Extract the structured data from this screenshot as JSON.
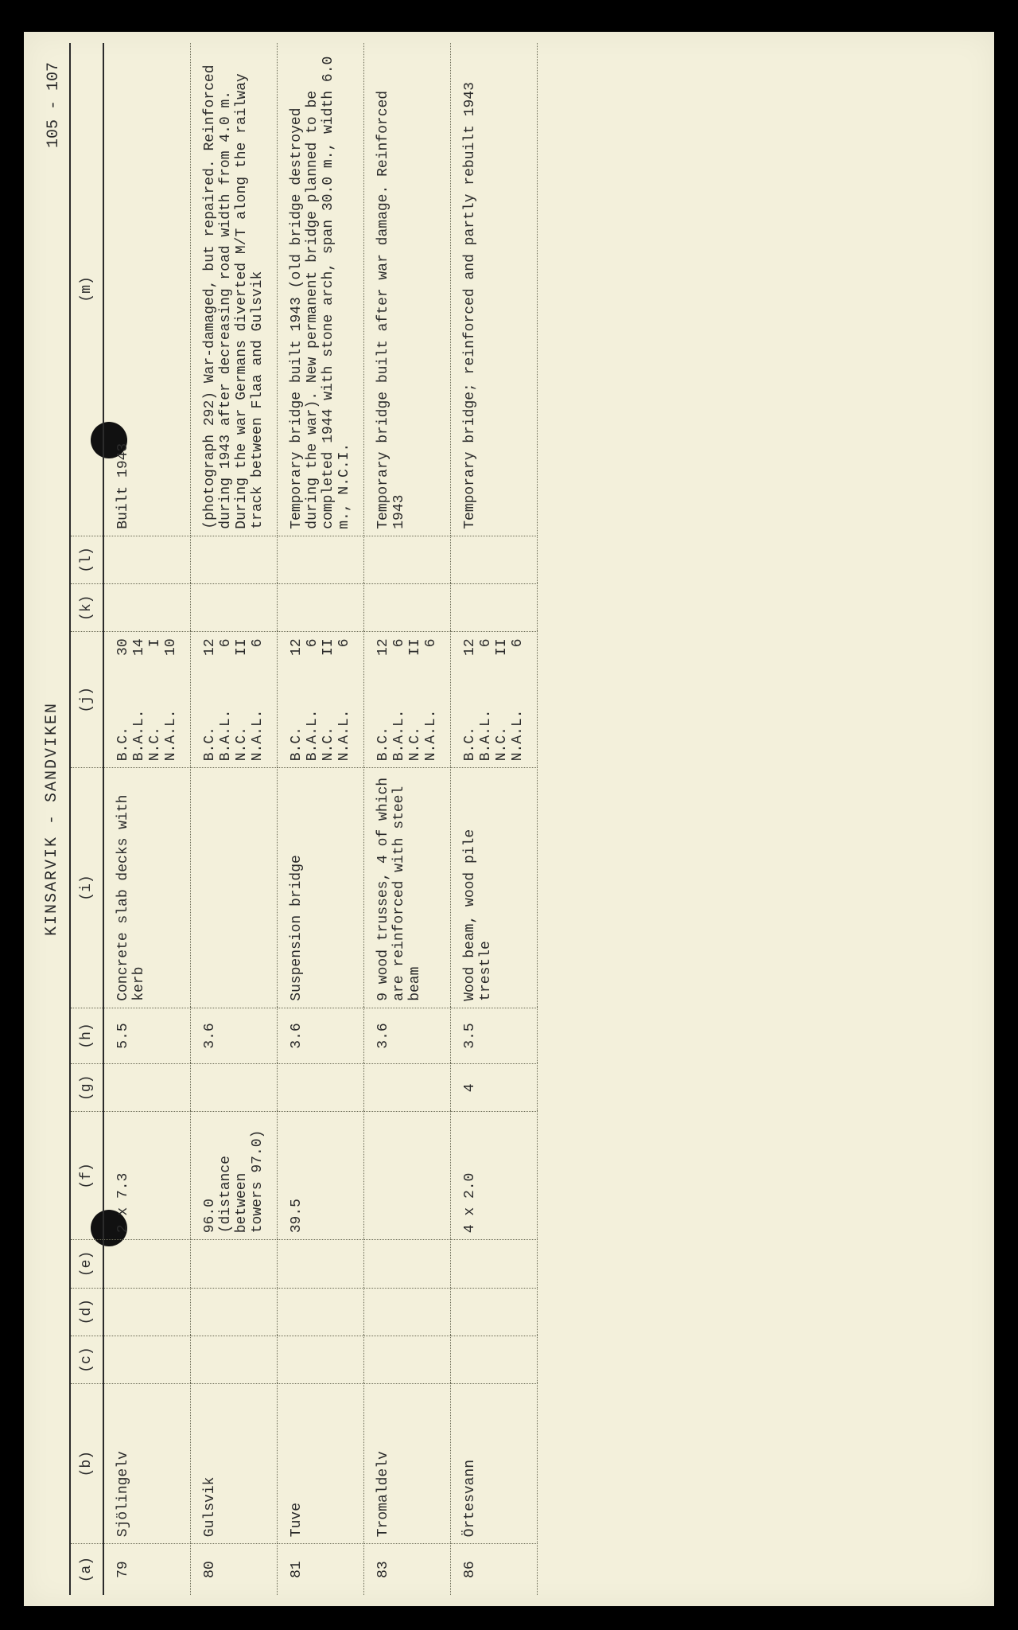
{
  "page": {
    "title": "KINSARVIK - SANDVIKEN",
    "page_number": "105 - 107",
    "background_color": "#f3f0db",
    "frame_color": "#000000",
    "text_color": "#2b2b2b",
    "rule_color": "#6a6a55",
    "font_family": "Courier New",
    "title_fontsize": 20,
    "body_fontsize": 18
  },
  "table": {
    "headers": [
      "(a)",
      "(b)",
      "(c)",
      "(d)",
      "(e)",
      "(f)",
      "(g)",
      "(h)",
      "(i)",
      "(j)",
      "(k)",
      "(l)",
      "(m)"
    ],
    "column_widths_pct": [
      3.2,
      10,
      3,
      3,
      3,
      8,
      3,
      3.5,
      15,
      8.5,
      3,
      3,
      30.8
    ],
    "j_keys": [
      "B.C.",
      "B.A.L.",
      "N.C.",
      "N.A.L."
    ],
    "rows": [
      {
        "a": "79",
        "b": "Sjölingelv",
        "c": "",
        "d": "",
        "e": "",
        "f": "2 x 7.3",
        "g": "",
        "h": "5.5",
        "i": "Concrete slab decks with kerb",
        "j": [
          "30",
          "14",
          "I",
          "10"
        ],
        "k": "",
        "l": "",
        "m": "Built 1943"
      },
      {
        "a": "80",
        "b": "Gulsvik",
        "c": "",
        "d": "",
        "e": "",
        "f": "96.0 (distance between towers 97.0)",
        "g": "",
        "h": "3.6",
        "i": "",
        "j": [
          "12",
          "6",
          "II",
          "6"
        ],
        "k": "",
        "l": "",
        "m": "(photograph 292) War-damaged, but repaired. Reinforced during 1943 after decreasing road width from 4.0 m. During the war Germans diverted M/T along the railway track between Flaa and Gulsvik"
      },
      {
        "a": "81",
        "b": "Tuve",
        "c": "",
        "d": "",
        "e": "",
        "f": "39.5",
        "g": "",
        "h": "3.6",
        "i": "Suspension bridge",
        "j": [
          "12",
          "6",
          "II",
          "6"
        ],
        "k": "",
        "l": "",
        "m": "Temporary bridge built 1943 (old bridge destroyed during the war). New permanent bridge planned to be completed 1944 with stone arch, span 30.0 m., width 6.0 m., N.C.I."
      },
      {
        "a": "83",
        "b": "Tromaldelv",
        "c": "",
        "d": "",
        "e": "",
        "f": "",
        "g": "",
        "h": "3.6",
        "i": "9 wood trusses, 4 of which are reinforced with steel beam",
        "j": [
          "12",
          "6",
          "II",
          "6"
        ],
        "k": "",
        "l": "",
        "m": "Temporary bridge built after war damage. Reinforced 1943"
      },
      {
        "a": "86",
        "b": "Örtesvann",
        "c": "",
        "d": "",
        "e": "",
        "f": "4 x 2.0",
        "g": "4",
        "h": "3.5",
        "i": "Wood beam, wood pile trestle",
        "j": [
          "12",
          "6",
          "II",
          "6"
        ],
        "k": "",
        "l": "",
        "m": "Temporary bridge; reinforced and partly rebuilt 1943"
      }
    ]
  }
}
